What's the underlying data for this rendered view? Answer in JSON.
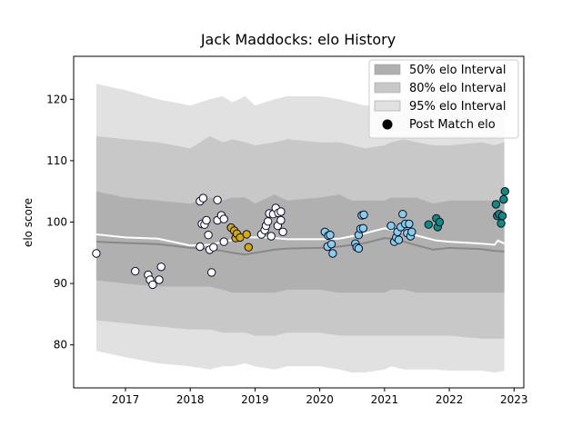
{
  "chart_data": {
    "type": "scatter",
    "title": "Jack Maddocks: elo History",
    "xlabel": "",
    "ylabel": "elo score",
    "xlim": [
      2016.2,
      2023.15
    ],
    "ylim": [
      73,
      127
    ],
    "xticks": [
      2017,
      2018,
      2019,
      2020,
      2021,
      2022,
      2023
    ],
    "xtick_labels": [
      "2017",
      "2018",
      "2019",
      "2020",
      "2021",
      "2022",
      "2023"
    ],
    "yticks": [
      80,
      90,
      100,
      110,
      120
    ],
    "ytick_labels": [
      "80",
      "90",
      "100",
      "110",
      "120"
    ],
    "grid": false,
    "legend_position": "top-right",
    "legend": [
      {
        "label": "50% elo Interval",
        "kind": "band",
        "color": "#b0b0b0"
      },
      {
        "label": "80% elo Interval",
        "kind": "band",
        "color": "#c8c8c8"
      },
      {
        "label": "95% elo Interval",
        "kind": "band",
        "color": "#e1e1e1"
      },
      {
        "label": "Post Match elo",
        "kind": "marker",
        "color": "#000000"
      }
    ],
    "x": [
      2016.55,
      2017.0,
      2017.5,
      2018.0,
      2018.3,
      2018.5,
      2018.65,
      2018.85,
      2019.0,
      2019.3,
      2019.5,
      2020.0,
      2020.3,
      2020.5,
      2020.7,
      2021.0,
      2021.1,
      2021.3,
      2021.5,
      2021.75,
      2022.0,
      2022.5,
      2022.7,
      2022.85
    ],
    "bands": {
      "p95_upper": [
        122.5,
        121.5,
        120.0,
        119.0,
        120.0,
        120.5,
        119.5,
        120.5,
        119.0,
        120.0,
        120.5,
        120.5,
        120.0,
        119.5,
        119.0,
        119.0,
        120.5,
        120.0,
        119.5,
        120.0,
        120.0,
        119.5,
        119.0,
        119.5
      ],
      "p80_upper": [
        114.0,
        113.5,
        113.0,
        112.0,
        114.0,
        113.0,
        113.5,
        113.0,
        112.5,
        113.0,
        113.5,
        113.0,
        113.0,
        112.5,
        112.0,
        112.5,
        113.0,
        113.5,
        113.0,
        112.5,
        112.5,
        113.0,
        112.5,
        113.0
      ],
      "p50_upper": [
        105.0,
        104.0,
        103.5,
        103.0,
        104.0,
        103.5,
        104.0,
        104.0,
        103.0,
        104.5,
        103.5,
        104.0,
        104.5,
        103.5,
        103.5,
        103.5,
        104.0,
        104.0,
        104.0,
        103.0,
        103.5,
        103.5,
        103.5,
        104.0
      ],
      "median": [
        96.8,
        96.6,
        96.4,
        95.8,
        95.6,
        95.3,
        95.0,
        94.7,
        95.0,
        95.5,
        95.7,
        95.8,
        96.0,
        96.3,
        96.6,
        97.4,
        97.3,
        96.8,
        96.2,
        95.5,
        95.8,
        95.6,
        95.3,
        95.2
      ],
      "p50_lower": [
        90.5,
        90.0,
        89.5,
        89.5,
        89.5,
        89.0,
        88.5,
        88.5,
        88.5,
        88.5,
        89.0,
        89.0,
        88.5,
        88.5,
        88.5,
        88.5,
        89.0,
        89.0,
        88.5,
        88.5,
        88.5,
        88.5,
        88.5,
        88.5
      ],
      "p80_lower": [
        84.0,
        83.5,
        83.0,
        82.5,
        82.5,
        82.0,
        82.0,
        82.0,
        81.5,
        81.5,
        82.0,
        82.0,
        81.5,
        81.5,
        81.5,
        81.5,
        81.5,
        81.5,
        81.5,
        81.5,
        81.5,
        81.0,
        81.0,
        81.0
      ],
      "p95_lower": [
        79.0,
        78.0,
        77.0,
        76.5,
        76.0,
        76.5,
        76.5,
        77.0,
        76.5,
        76.0,
        76.5,
        76.5,
        76.0,
        75.5,
        75.5,
        76.0,
        76.5,
        76.0,
        76.0,
        76.0,
        75.8,
        75.8,
        75.5,
        75.8
      ]
    },
    "smoothed_line": {
      "color": "#ffffff",
      "x": [
        2016.55,
        2017.0,
        2017.5,
        2018.0,
        2018.3,
        2018.6,
        2018.9,
        2019.2,
        2019.5,
        2020.0,
        2020.3,
        2020.6,
        2021.0,
        2021.2,
        2021.5,
        2021.8,
        2022.0,
        2022.5,
        2022.7,
        2022.75,
        2022.85
      ],
      "y": [
        98.0,
        97.5,
        97.3,
        96.2,
        96.3,
        97.0,
        97.5,
        97.5,
        97.2,
        97.2,
        97.3,
        97.9,
        99.0,
        98.5,
        97.8,
        97.0,
        96.8,
        96.5,
        96.3,
        97.0,
        96.5
      ]
    },
    "series": [
      {
        "color": "#ffffff",
        "points": [
          [
            2016.55,
            94.9
          ],
          [
            2017.15,
            92.0
          ],
          [
            2017.35,
            91.4
          ],
          [
            2017.38,
            90.6
          ],
          [
            2017.42,
            89.8
          ],
          [
            2017.52,
            90.6
          ],
          [
            2017.55,
            92.7
          ],
          [
            2018.15,
            96.0
          ],
          [
            2018.15,
            103.4
          ],
          [
            2018.18,
            99.7
          ],
          [
            2018.2,
            103.9
          ],
          [
            2018.22,
            99.6
          ],
          [
            2018.25,
            100.3
          ],
          [
            2018.28,
            97.9
          ],
          [
            2018.3,
            95.5
          ],
          [
            2018.33,
            91.8
          ],
          [
            2018.36,
            95.9
          ],
          [
            2018.42,
            100.3
          ],
          [
            2018.42,
            103.6
          ],
          [
            2018.48,
            101.1
          ],
          [
            2018.52,
            100.5
          ],
          [
            2018.52,
            96.8
          ],
          [
            2019.1,
            98.0
          ],
          [
            2019.15,
            98.7
          ],
          [
            2019.17,
            99.4
          ],
          [
            2019.2,
            100.1
          ],
          [
            2019.22,
            101.4
          ],
          [
            2019.25,
            97.7
          ],
          [
            2019.28,
            101.3
          ],
          [
            2019.32,
            102.3
          ],
          [
            2019.35,
            99.4
          ],
          [
            2019.36,
            101.5
          ],
          [
            2019.4,
            101.7
          ],
          [
            2019.4,
            100.3
          ],
          [
            2019.43,
            98.4
          ]
        ]
      },
      {
        "color": "#d4a80f",
        "points": [
          [
            2018.63,
            99.1
          ],
          [
            2018.68,
            98.6
          ],
          [
            2018.7,
            97.4
          ],
          [
            2018.72,
            98.1
          ],
          [
            2018.77,
            97.5
          ],
          [
            2018.87,
            98.0
          ],
          [
            2018.9,
            95.9
          ]
        ]
      },
      {
        "color": "#87ceeb",
        "points": [
          [
            2020.08,
            98.4
          ],
          [
            2020.12,
            96.0
          ],
          [
            2020.13,
            97.8
          ],
          [
            2020.16,
            97.9
          ],
          [
            2020.18,
            96.4
          ],
          [
            2020.2,
            94.9
          ],
          [
            2020.55,
            96.5
          ],
          [
            2020.57,
            95.9
          ],
          [
            2020.6,
            95.7
          ],
          [
            2020.6,
            97.9
          ],
          [
            2020.63,
            98.9
          ],
          [
            2020.65,
            101.1
          ],
          [
            2020.67,
            99.0
          ],
          [
            2020.68,
            101.2
          ],
          [
            2021.1,
            99.4
          ],
          [
            2021.15,
            96.8
          ],
          [
            2021.18,
            97.5
          ],
          [
            2021.2,
            98.4
          ],
          [
            2021.22,
            97.1
          ],
          [
            2021.25,
            99.2
          ],
          [
            2021.28,
            101.3
          ],
          [
            2021.32,
            99.7
          ],
          [
            2021.35,
            98.2
          ],
          [
            2021.38,
            99.7
          ],
          [
            2021.4,
            97.7
          ],
          [
            2021.42,
            98.4
          ]
        ]
      },
      {
        "color": "#138a7e",
        "points": [
          [
            2021.68,
            99.6
          ],
          [
            2021.8,
            100.6
          ],
          [
            2021.82,
            99.2
          ],
          [
            2021.85,
            100.0
          ],
          [
            2022.72,
            102.9
          ],
          [
            2022.74,
            101.0
          ],
          [
            2022.77,
            101.3
          ],
          [
            2022.8,
            99.8
          ],
          [
            2022.82,
            101.0
          ],
          [
            2022.84,
            103.7
          ],
          [
            2022.86,
            105.0
          ]
        ]
      }
    ]
  }
}
